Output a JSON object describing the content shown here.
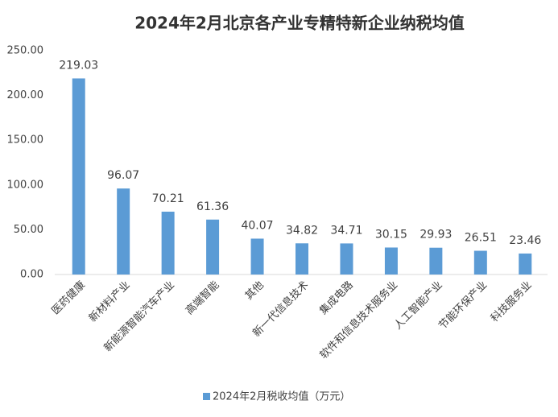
{
  "chart_data": {
    "type": "bar",
    "title": "2024年2月北京各产业专精特新企业纳税均值",
    "categories": [
      "医药健康",
      "新材料产业",
      "新能源智能汽车产业",
      "高端智能",
      "其他",
      "新一代信息技术",
      "集成电路",
      "软件和信息技术服务业",
      "人工智能产业",
      "节能环保产业",
      "科技服务业"
    ],
    "series": [
      {
        "name": "2024年2月税收均值（万元）",
        "color": "#5b9bd5",
        "values": [
          219.03,
          96.07,
          70.21,
          61.36,
          40.07,
          34.82,
          34.71,
          30.15,
          29.93,
          26.51,
          23.46
        ]
      }
    ],
    "ylim": [
      0,
      250
    ],
    "yticks": [
      {
        "value": 0,
        "label": "0.00"
      },
      {
        "value": 50,
        "label": "50.00"
      },
      {
        "value": 100,
        "label": "100.00"
      },
      {
        "value": 150,
        "label": "150.00"
      },
      {
        "value": 200,
        "label": "200.00"
      },
      {
        "value": 250,
        "label": "250.00"
      }
    ],
    "grid": false,
    "legend": "bottom"
  }
}
